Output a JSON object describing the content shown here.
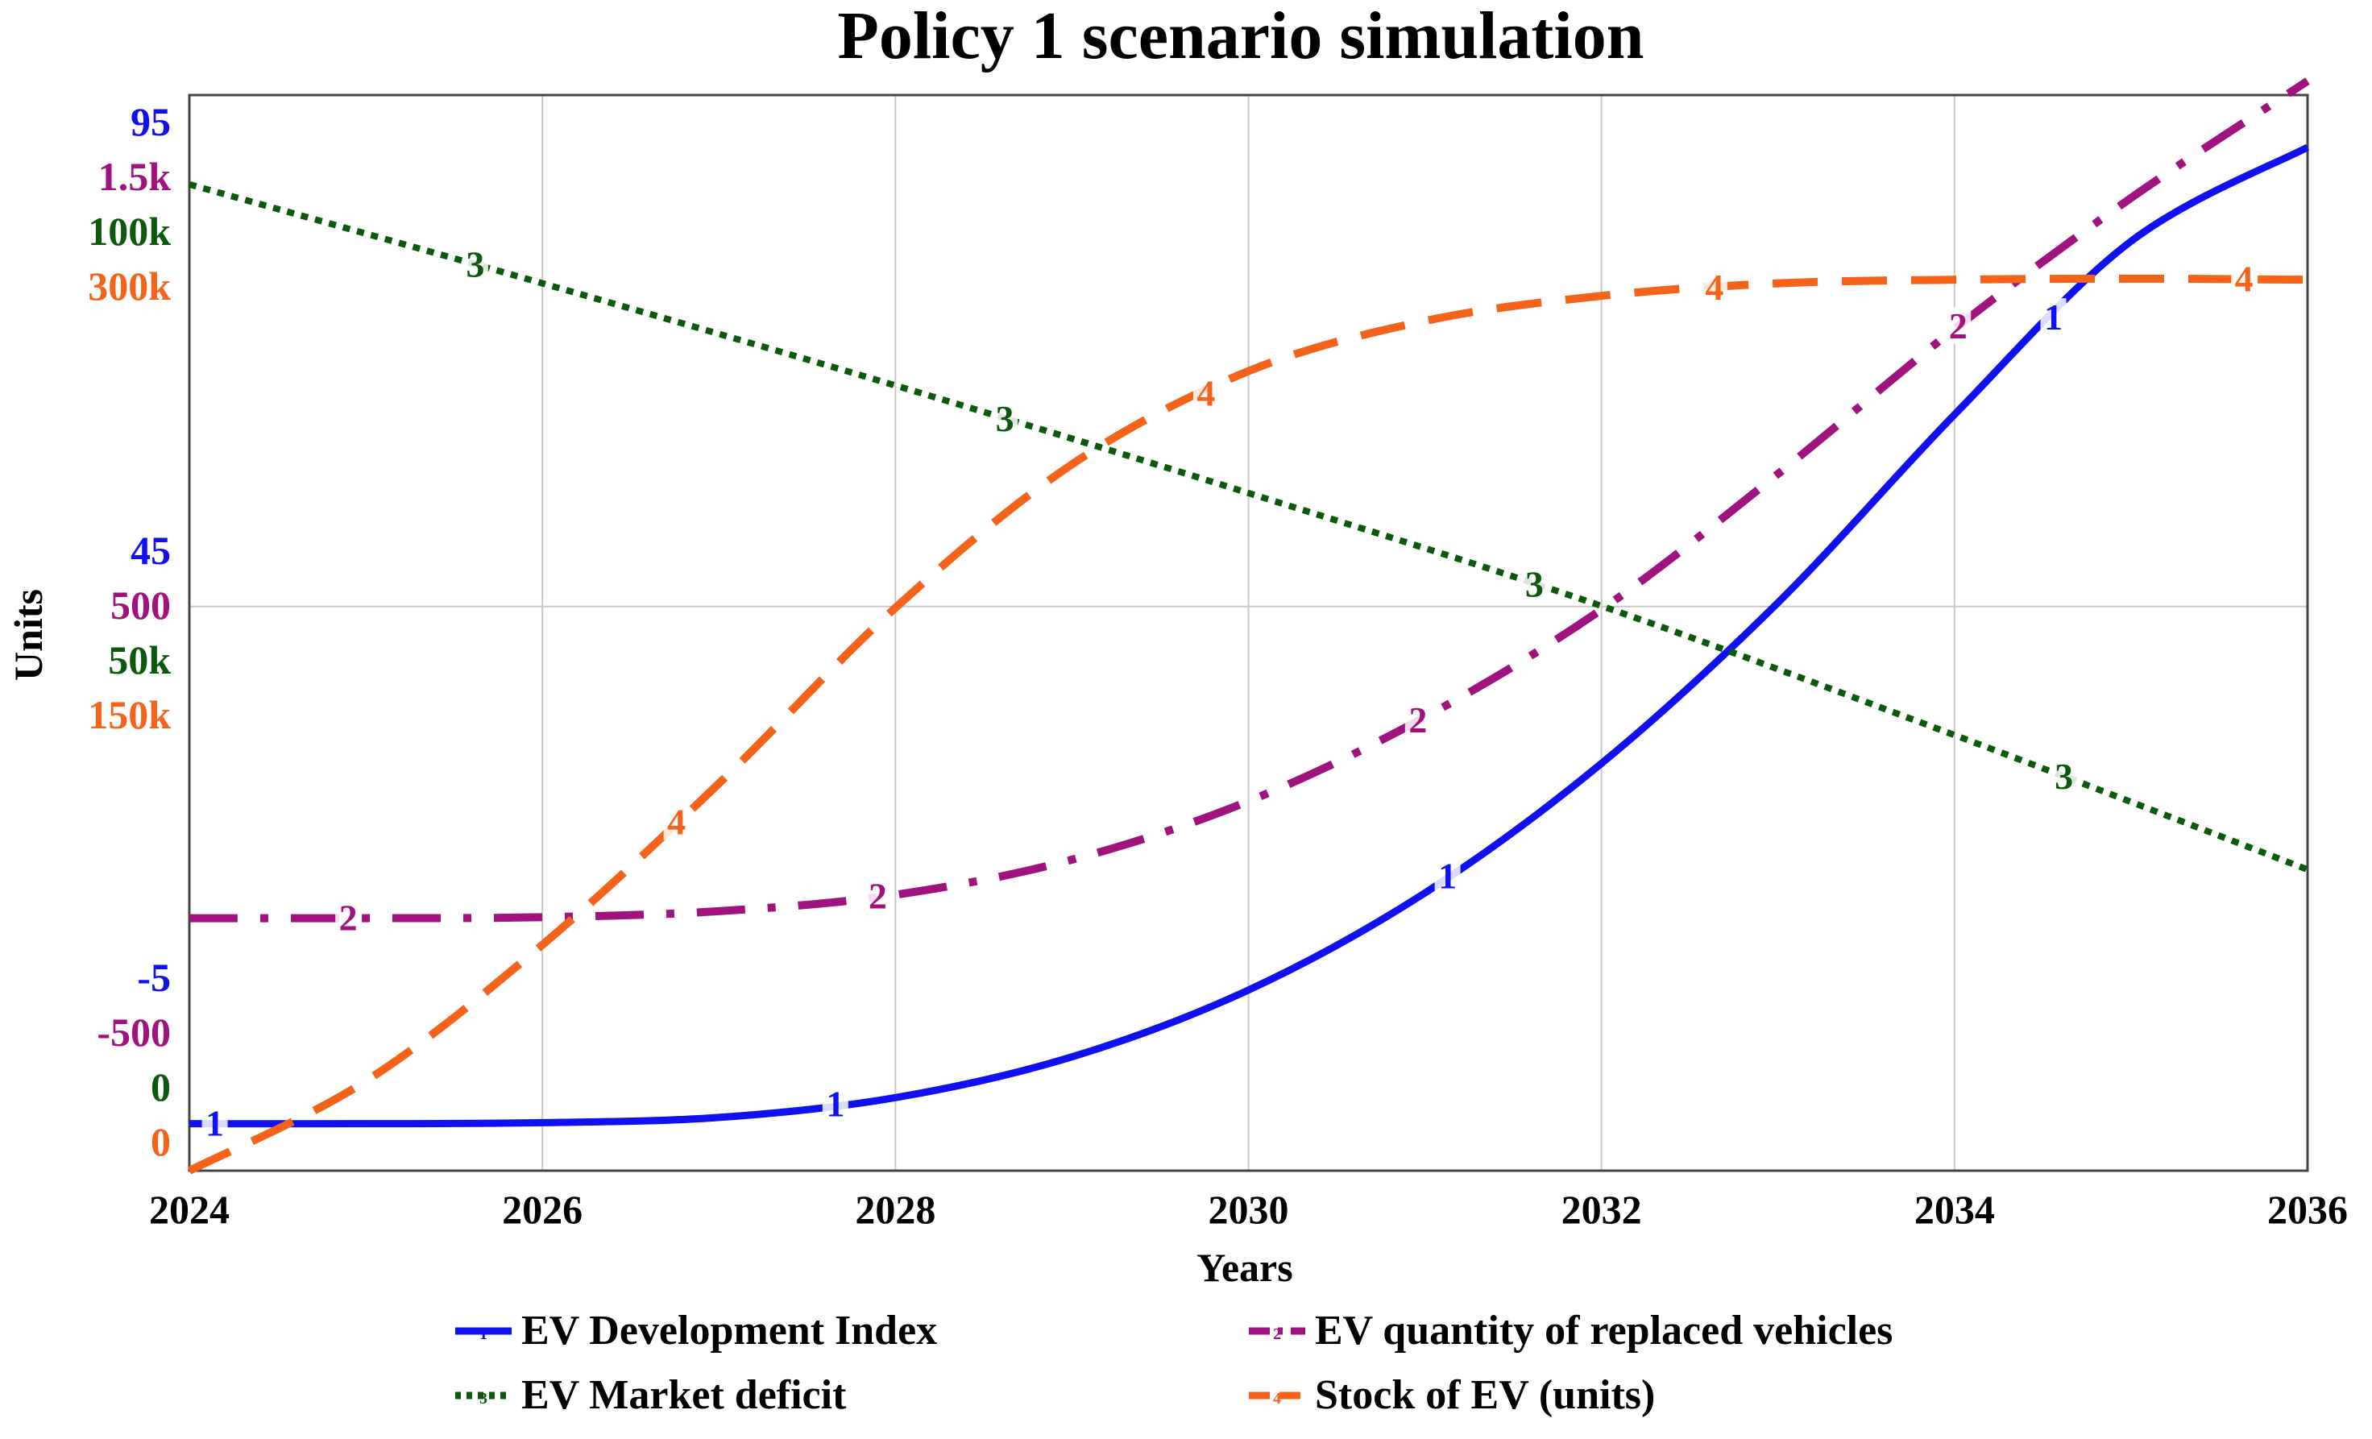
{
  "chart_data": {
    "type": "line",
    "title": "Policy 1 scenario simulation",
    "xlabel": "Years",
    "ylabel": "Units",
    "xlim": [
      2024,
      2036
    ],
    "x_ticks": [
      "2024",
      "2026",
      "2028",
      "2030",
      "2032",
      "2034",
      "2036"
    ],
    "grid": true,
    "legend_position": "bottom",
    "y_axes": [
      {
        "series": "1",
        "color": "#1010f0",
        "ticks": [
          "95",
          "45",
          "-5"
        ],
        "ylim": [
          -8,
          95
        ]
      },
      {
        "series": "2",
        "color": "#a0127e",
        "ticks": [
          "1.5k",
          "500",
          "-500"
        ],
        "ylim": [
          -800,
          1500
        ]
      },
      {
        "series": "3",
        "color": "#0b5a0b",
        "ticks": [
          "100k",
          "50k",
          "0"
        ],
        "ylim": [
          0,
          100000
        ]
      },
      {
        "series": "4",
        "color": "#f5631a",
        "ticks": [
          "300k",
          "150k",
          "0"
        ],
        "ylim": [
          0,
          300000
        ]
      }
    ],
    "series": [
      {
        "id": "1",
        "name": "EV Development Index",
        "color": "#1010f0",
        "style": "solid",
        "x": [
          2024,
          2025,
          2026,
          2027,
          2028,
          2029,
          2030,
          2031,
          2032,
          2033,
          2034,
          2035,
          2036
        ],
        "values": [
          -3.5,
          -3.5,
          -3.4,
          -2.9,
          -1.0,
          2.9,
          9.3,
          18.6,
          31.0,
          46.4,
          64.4,
          81.0,
          90.0
        ]
      },
      {
        "id": "2",
        "name": "EV quantity of replaced vehicles",
        "color": "#a0127e",
        "style": "dashdot",
        "x": [
          2024,
          2025,
          2026,
          2027,
          2028,
          2029,
          2030,
          2031,
          2032,
          2033,
          2034,
          2035,
          2036
        ],
        "values": [
          -260,
          -260,
          -258,
          -245,
          -210,
          -135,
          -10,
          170,
          400,
          690,
          1000,
          1280,
          1530
        ]
      },
      {
        "id": "3",
        "name": "EV Market deficit",
        "color": "#0b5a0b",
        "style": "dotted",
        "x": [
          2024,
          2026,
          2028,
          2030,
          2032,
          2034,
          2036
        ],
        "values": [
          91700,
          82500,
          73000,
          63000,
          52500,
          40500,
          28000
        ]
      },
      {
        "id": "4",
        "name": "Stock of EV (units)",
        "color": "#f5631a",
        "style": "dashed",
        "x": [
          2024,
          2025,
          2026,
          2027,
          2028,
          2029,
          2030,
          2031,
          2032,
          2033,
          2034,
          2035,
          2036
        ],
        "values": [
          0,
          25000,
          63000,
          108000,
          157000,
          197000,
          223000,
          237000,
          244000,
          247500,
          248500,
          248800,
          248500
        ]
      }
    ]
  }
}
